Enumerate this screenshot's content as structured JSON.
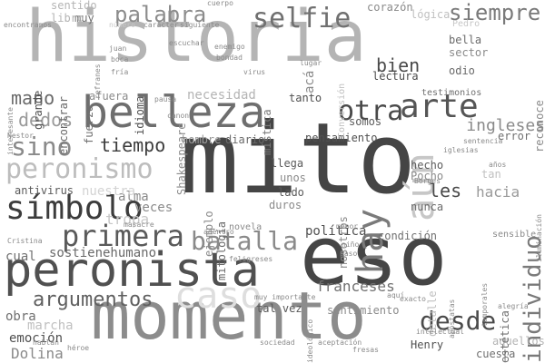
{
  "wordcloud": {
    "words": [
      {
        "text": "historia",
        "color": "#b4b4b4"
      },
      {
        "text": "mito",
        "color": "#454545"
      },
      {
        "text": "eso",
        "color": "#454545"
      },
      {
        "text": "momento",
        "color": "#8c8c8c"
      },
      {
        "text": "peronista",
        "color": "#505050"
      },
      {
        "text": "belleza",
        "color": "#6e6e6e"
      },
      {
        "text": "peronismo",
        "color": "#bdbdbd"
      },
      {
        "text": "símbolo",
        "color": "#3c3c3c"
      },
      {
        "text": "primera",
        "color": "#5a5a5a"
      },
      {
        "text": "batalla",
        "color": "#8a8a8a"
      },
      {
        "text": "arte",
        "color": "#555555"
      },
      {
        "text": "aún",
        "color": "#c7c7c7"
      },
      {
        "text": "otra",
        "color": "#4a4a4a"
      },
      {
        "text": "sino",
        "color": "#8a8a8a"
      },
      {
        "text": "selfie",
        "color": "#707070"
      },
      {
        "text": "palabra",
        "color": "#8c8c8c"
      },
      {
        "text": "siempre",
        "color": "#7a7a7a"
      },
      {
        "text": "hay",
        "color": "#7a7a7a"
      },
      {
        "text": "desde",
        "color": "#4a4a4a"
      },
      {
        "text": "caso",
        "color": "#dedede"
      },
      {
        "text": "argumentos",
        "color": "#606060"
      },
      {
        "text": "individuo",
        "color": "#7a7a7a"
      },
      {
        "text": "tiempo",
        "color": "#3c3c3c"
      },
      {
        "text": "bien",
        "color": "#4a4a4a"
      },
      {
        "text": "mano",
        "color": "#6a6a6a"
      },
      {
        "text": "dedos",
        "color": "#9a9a9a"
      },
      {
        "text": "hacia",
        "color": "#9a9a9a"
      },
      {
        "text": "ingleses",
        "color": "#8a8a8a"
      },
      {
        "text": "les",
        "color": "#4a4a4a"
      },
      {
        "text": "franceses",
        "color": "#707070"
      },
      {
        "text": "Dolina",
        "color": "#8a8a8a"
      },
      {
        "text": "emoción",
        "color": "#505050"
      },
      {
        "text": "obra",
        "color": "#707070"
      },
      {
        "text": "cual",
        "color": "#707070"
      },
      {
        "text": "marcha",
        "color": "#c0c0c0"
      },
      {
        "text": "sostienehumano",
        "color": "#6a6a6a"
      },
      {
        "text": "tropa",
        "color": "#c7c7c7"
      },
      {
        "text": "alma",
        "color": "#8a8a8a"
      },
      {
        "text": "veces",
        "color": "#8a8a8a"
      },
      {
        "text": "nuestra",
        "color": "#d3d3d3"
      },
      {
        "text": "antivirus",
        "color": "#5a5a5a"
      },
      {
        "text": "hombre",
        "color": "#9a9a9a"
      },
      {
        "text": "diario",
        "color": "#6a6a6a"
      },
      {
        "text": "pensamiento",
        "color": "#505050"
      },
      {
        "text": "política",
        "color": "#505050"
      },
      {
        "text": "Shakespeare",
        "color": "#8a8a8a"
      },
      {
        "text": "mística",
        "color": "#7a7a7a"
      },
      {
        "text": "necesidad",
        "color": "#b4b4b4"
      },
      {
        "text": "tanto",
        "color": "#505050"
      },
      {
        "text": "acá",
        "color": "#8a8a8a"
      },
      {
        "text": "lectura",
        "color": "#4a4a4a"
      },
      {
        "text": "bella",
        "color": "#6a6a6a"
      },
      {
        "text": "sector",
        "color": "#8a8a8a"
      },
      {
        "text": "odio",
        "color": "#6a6a6a"
      },
      {
        "text": "corazón",
        "color": "#8a8a8a"
      },
      {
        "text": "lógica",
        "color": "#c0c0c0"
      },
      {
        "text": "encontrar",
        "color": "#6a6a6a"
      },
      {
        "text": "fuerza",
        "color": "#707070"
      },
      {
        "text": "grande",
        "color": "#505050"
      },
      {
        "text": "afuera",
        "color": "#8a8a8a"
      },
      {
        "text": "idioma",
        "color": "#505050"
      },
      {
        "text": "muy",
        "color": "#707070"
      },
      {
        "text": "sentido",
        "color": "#b4b4b4"
      },
      {
        "text": "libro",
        "color": "#b4b4b4"
      },
      {
        "text": "llega",
        "color": "#5a5a5a"
      },
      {
        "text": "lado",
        "color": "#5a5a5a"
      },
      {
        "text": "unos",
        "color": "#8a8a8a"
      },
      {
        "text": "duros",
        "color": "#8a8a8a"
      },
      {
        "text": "hecho",
        "color": "#5a5a5a"
      },
      {
        "text": "Pocho",
        "color": "#8a8a8a"
      },
      {
        "text": "nunca",
        "color": "#6a6a6a"
      },
      {
        "text": "condición",
        "color": "#707070"
      },
      {
        "text": "nosotros",
        "color": "#8a8a8a"
      },
      {
        "text": "mitología",
        "color": "#6a6a6a"
      },
      {
        "text": "ejemplo",
        "color": "#8a8a8a"
      },
      {
        "text": "somos",
        "color": "#5a5a5a"
      },
      {
        "text": "error",
        "color": "#707070"
      },
      {
        "text": "tan",
        "color": "#c0c0c0"
      },
      {
        "text": "Henry",
        "color": "#505050"
      },
      {
        "text": "cuesta",
        "color": "#707070"
      },
      {
        "text": "aquellos",
        "color": "#b4b4b4"
      },
      {
        "text": "estética",
        "color": "#707070"
      },
      {
        "text": "tal vez",
        "color": "#5a5a5a"
      },
      {
        "text": "sentimiento",
        "color": "#8a8a8a"
      },
      {
        "text": "testimonios",
        "color": "#707070"
      },
      {
        "text": "reconoce",
        "color": "#8a8a8a"
      },
      {
        "text": "detalle",
        "color": "#c0c0c0"
      },
      {
        "text": "novela",
        "color": "#8a8a8a"
      },
      {
        "text": "Conversión",
        "color": "#c0c0c0"
      },
      {
        "text": "Pedro",
        "color": "#c7c7c7"
      },
      {
        "text": "encontramos",
        "color": "#8a8a8a"
      },
      {
        "text": "carácter",
        "color": "#8a8a8a"
      },
      {
        "text": "siguiente",
        "color": "#8a8a8a"
      },
      {
        "text": "número",
        "color": "#c7c7c7"
      },
      {
        "text": "escuchar",
        "color": "#8a8a8a"
      },
      {
        "text": "enemigo",
        "color": "#8a8a8a"
      },
      {
        "text": "bondad",
        "color": "#8a8a8a"
      },
      {
        "text": "virus",
        "color": "#8a8a8a"
      },
      {
        "text": "refranes",
        "color": "#8a8a8a"
      },
      {
        "text": "boca",
        "color": "#8a8a8a"
      },
      {
        "text": "fría",
        "color": "#8a8a8a"
      },
      {
        "text": "pausa",
        "color": "#8a8a8a"
      },
      {
        "text": "canon",
        "color": "#8a8a8a"
      },
      {
        "text": "héroe",
        "color": "#8a8a8a"
      },
      {
        "text": "interesante",
        "color": "#8a8a8a"
      },
      {
        "text": "años",
        "color": "#8a8a8a"
      },
      {
        "text": "Borges",
        "color": "#8a8a8a"
      },
      {
        "text": "intelectual",
        "color": "#8a8a8a"
      },
      {
        "text": "menor",
        "color": "#8a8a8a"
      },
      {
        "text": "muy importante",
        "color": "#8a8a8a"
      },
      {
        "text": "cuerpo",
        "color": "#8a8a8a"
      },
      {
        "text": "adentro",
        "color": "#8a8a8a"
      },
      {
        "text": "exacto",
        "color": "#8a8a8a"
      },
      {
        "text": "Nestor",
        "color": "#8a8a8a"
      },
      {
        "text": "masacre",
        "color": "#8a8a8a"
      },
      {
        "text": "iglesias",
        "color": "#8a8a8a"
      },
      {
        "text": "sentencia",
        "color": "#8a8a8a"
      },
      {
        "text": "hablan",
        "color": "#8a8a8a"
      },
      {
        "text": "alegría",
        "color": "#8a8a8a"
      },
      {
        "text": "sociedad",
        "color": "#8a8a8a"
      },
      {
        "text": "ideológico",
        "color": "#8a8a8a"
      },
      {
        "text": "aceptación",
        "color": "#8a8a8a"
      },
      {
        "text": "apóstatas",
        "color": "#8a8a8a"
      },
      {
        "text": "temporales",
        "color": "#8a8a8a"
      },
      {
        "text": "iluminación",
        "color": "#8a8a8a"
      },
      {
        "text": "sensible",
        "color": "#8a8a8a"
      },
      {
        "text": "fresas",
        "color": "#8a8a8a"
      },
      {
        "text": "Cristina",
        "color": "#8a8a8a"
      },
      {
        "text": "lugar",
        "color": "#8a8a8a"
      },
      {
        "text": "juan",
        "color": "#8a8a8a"
      },
      {
        "text": "feligreses",
        "color": "#8a8a8a"
      },
      {
        "text": "paso",
        "color": "#8a8a8a"
      },
      {
        "text": "niño",
        "color": "#8a8a8a"
      },
      {
        "text": "aquí",
        "color": "#8a8a8a"
      }
    ]
  }
}
